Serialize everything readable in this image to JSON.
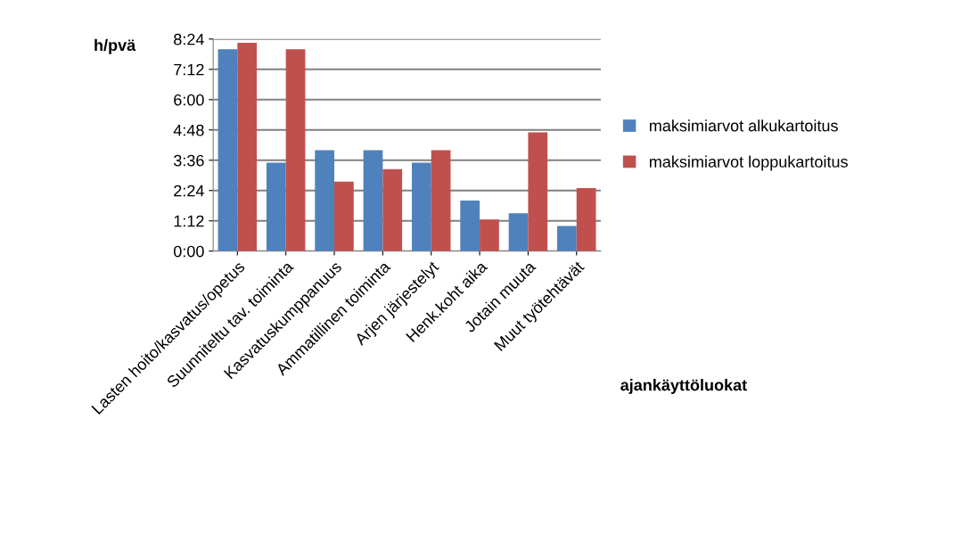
{
  "chart_data": {
    "type": "bar",
    "ylabel": "h/pvä",
    "xlabel": "ajankäyttöluokat",
    "categories": [
      "Lasten hoito/kasvatus/opetus",
      "Suunniteltu tav. toiminta",
      "Kasvatuskumppanuus",
      "Ammatillinen toiminta",
      "Arjen järjestelyt",
      "Henk.koht aika",
      "Jotain muuta",
      "Muut työtehtävät"
    ],
    "series": [
      {
        "name": "maksimiarvot alkukartoitus",
        "color": "#4f81bd",
        "values": [
          8.0,
          3.5,
          4.0,
          4.0,
          3.5,
          2.0,
          1.5,
          1.0
        ]
      },
      {
        "name": "maksimiarvot loppukartoitus",
        "color": "#c0504d",
        "values": [
          8.25,
          8.0,
          2.75,
          3.25,
          4.0,
          1.25,
          4.7,
          2.5
        ]
      }
    ],
    "ylim": [
      0,
      8.4
    ],
    "yticks": [
      {
        "value": 0,
        "label": "0:00"
      },
      {
        "value": 1.2,
        "label": "1:12"
      },
      {
        "value": 2.4,
        "label": "2:24"
      },
      {
        "value": 3.6,
        "label": "3:36"
      },
      {
        "value": 4.8,
        "label": "4:48"
      },
      {
        "value": 6.0,
        "label": "6:00"
      },
      {
        "value": 7.2,
        "label": "7:12"
      },
      {
        "value": 8.4,
        "label": "8:24"
      }
    ],
    "grid": "y",
    "legend": "right"
  }
}
